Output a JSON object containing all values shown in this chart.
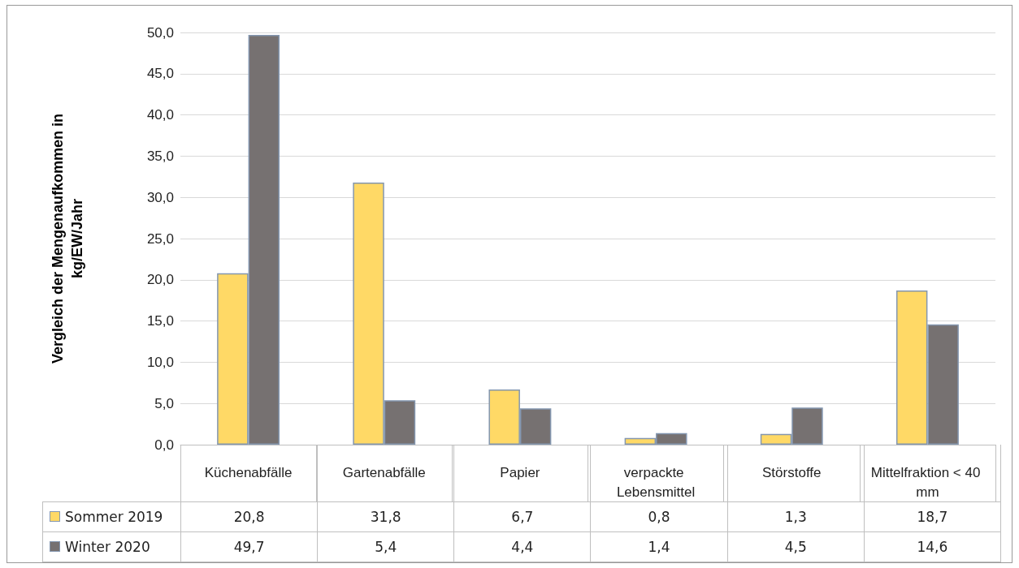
{
  "chart_data": {
    "type": "bar",
    "ylabel": "Vergleich der Mengenaufkommen in kg/EW/Jahr",
    "categories": [
      "Küchenabfälle",
      "Gartenabfälle",
      "Papier",
      "verpackte Lebensmittel",
      "Störstoffe",
      "Mittelfraktion < 40 mm"
    ],
    "series": [
      {
        "name": "Sommer 2019",
        "color": "#ffd966",
        "values": [
          20.8,
          31.8,
          6.7,
          0.8,
          1.3,
          18.7
        ],
        "value_labels": [
          "20,8",
          "31,8",
          "6,7",
          "0,8",
          "1,3",
          "18,7"
        ]
      },
      {
        "name": "Winter 2020",
        "color": "#767171",
        "values": [
          49.7,
          5.4,
          4.4,
          1.4,
          4.5,
          14.6
        ],
        "value_labels": [
          "49,7",
          "5,4",
          "4,4",
          "1,4",
          "4,5",
          "14,6"
        ]
      }
    ],
    "ylim": [
      0,
      50
    ],
    "yticks": [
      {
        "value": 0,
        "label": "0,0"
      },
      {
        "value": 5,
        "label": "5,0"
      },
      {
        "value": 10,
        "label": "10,0"
      },
      {
        "value": 15,
        "label": "15,0"
      },
      {
        "value": 20,
        "label": "20,0"
      },
      {
        "value": 25,
        "label": "25,0"
      },
      {
        "value": 30,
        "label": "30,0"
      },
      {
        "value": 35,
        "label": "35,0"
      },
      {
        "value": 40,
        "label": "40,0"
      },
      {
        "value": 45,
        "label": "45,0"
      },
      {
        "value": 50,
        "label": "50,0"
      }
    ],
    "grid": "y",
    "legend": "bottom left"
  }
}
